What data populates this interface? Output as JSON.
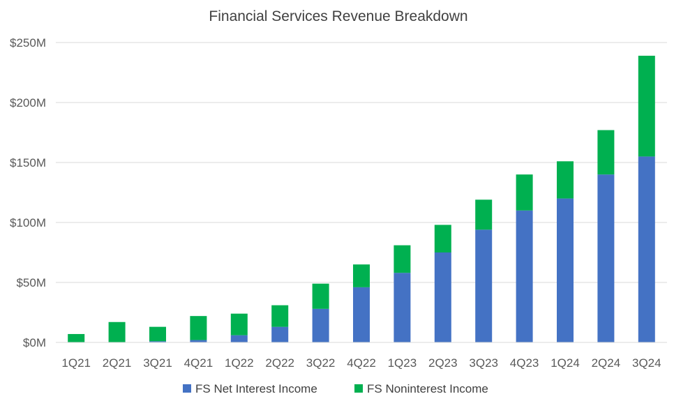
{
  "chart_data": {
    "type": "bar",
    "stacked": true,
    "title": "Financial Services Revenue Breakdown",
    "xlabel": "",
    "ylabel": "",
    "categories": [
      "1Q21",
      "2Q21",
      "3Q21",
      "4Q21",
      "1Q22",
      "2Q22",
      "3Q22",
      "4Q22",
      "1Q23",
      "2Q23",
      "3Q23",
      "4Q23",
      "1Q24",
      "2Q24",
      "3Q24"
    ],
    "series": [
      {
        "name": "FS Net Interest Income",
        "color": "#4472c4",
        "values": [
          0,
          0,
          1,
          2,
          6,
          13,
          28,
          46,
          58,
          75,
          94,
          110,
          120,
          140,
          155
        ]
      },
      {
        "name": "FS Noninterest Income",
        "color": "#00b050",
        "values": [
          7,
          17,
          12,
          20,
          18,
          18,
          21,
          19,
          23,
          23,
          25,
          30,
          31,
          37,
          84
        ]
      }
    ],
    "ylim": [
      0,
      250
    ],
    "yticks": [
      0,
      50,
      100,
      150,
      200,
      250
    ],
    "ytick_labels": [
      "$0M",
      "$50M",
      "$100M",
      "$150M",
      "$200M",
      "$250M"
    ],
    "grid": true,
    "legend_position": "bottom-center"
  }
}
